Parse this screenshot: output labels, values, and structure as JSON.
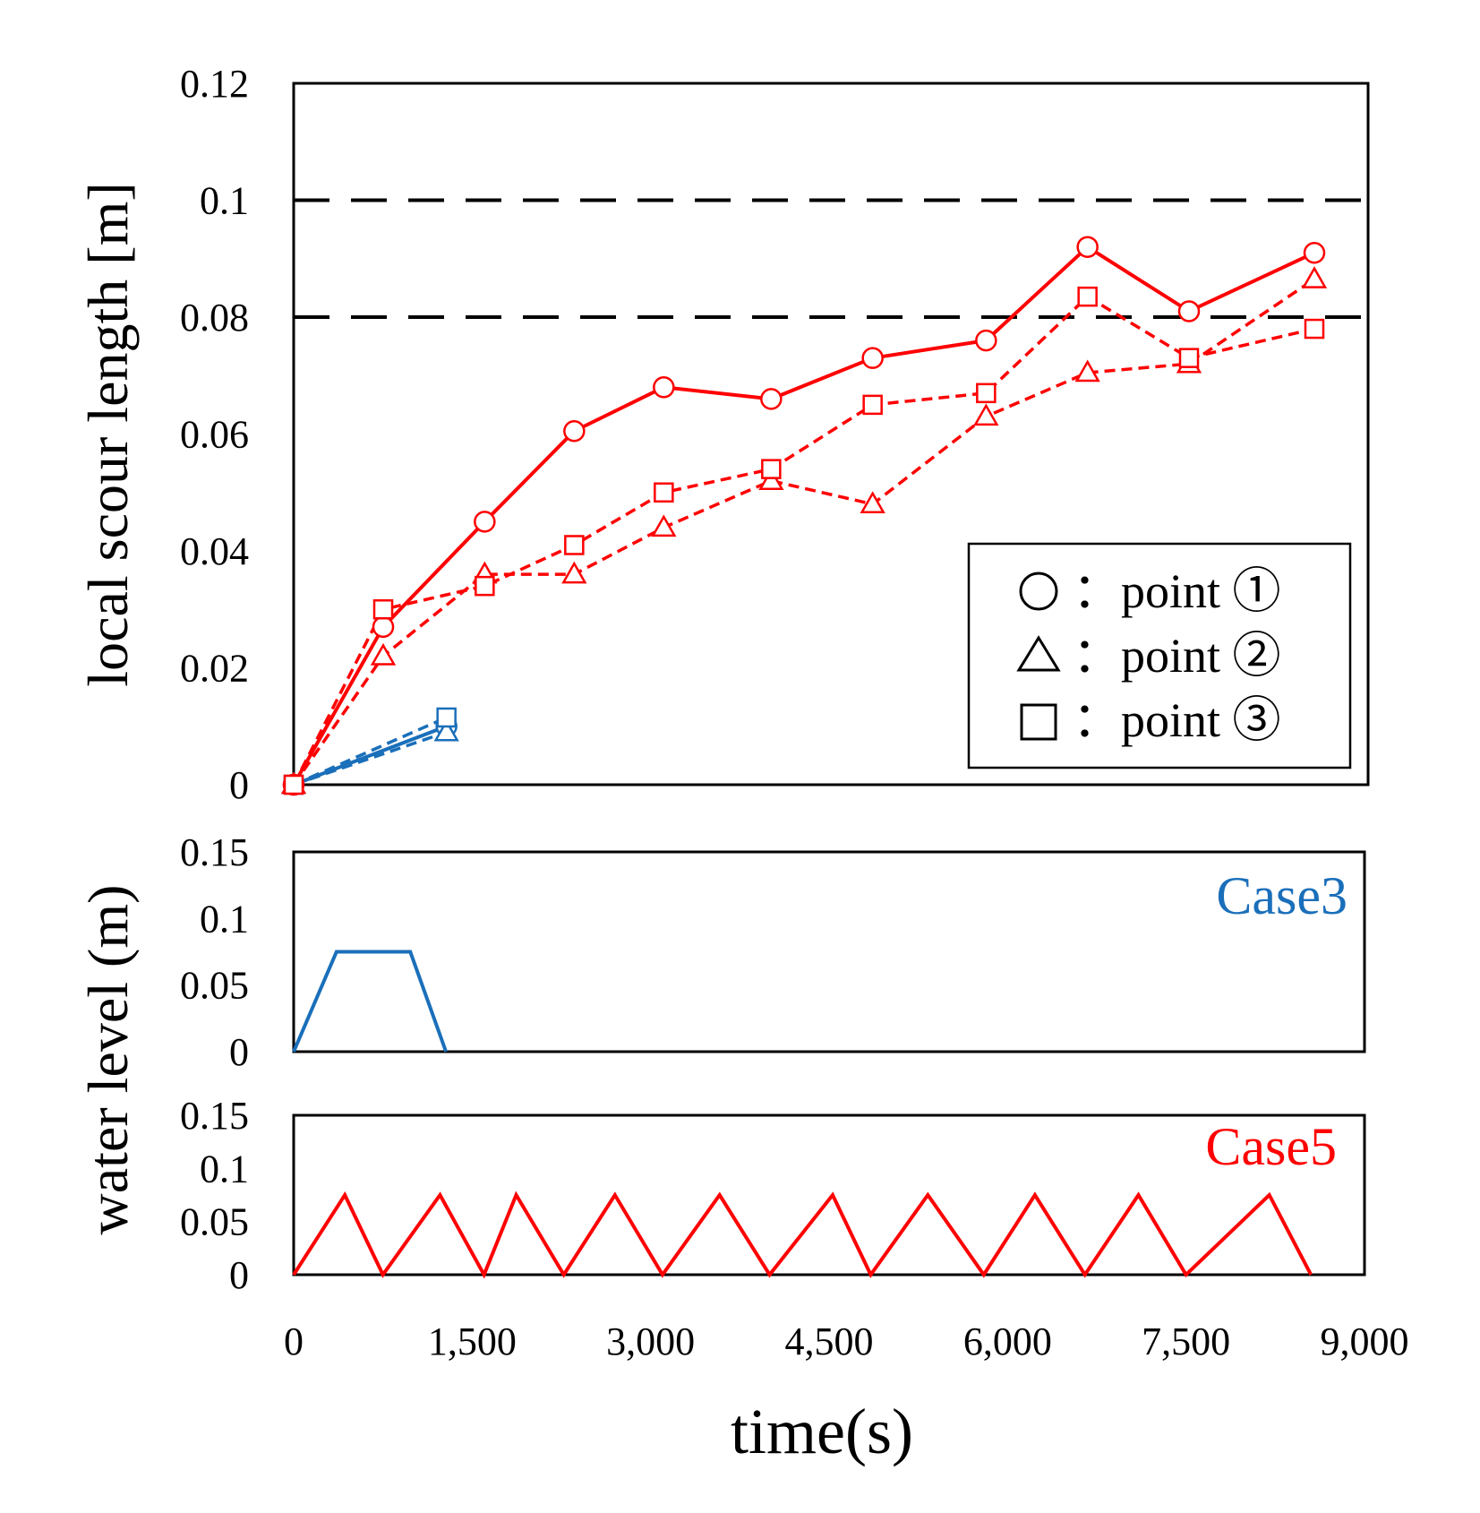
{
  "colors": {
    "case3": "#1a6fba",
    "case5": "#ff0000",
    "frame": "#000000",
    "ref": "#000000"
  },
  "chart_data": [
    {
      "type": "line",
      "title": "",
      "ylabel": "local scour length [m]",
      "xlim": [
        0,
        9000
      ],
      "ylim": [
        0,
        0.12
      ],
      "yticks": [
        0,
        0.02,
        0.04,
        0.06,
        0.08,
        0.1,
        0.12
      ],
      "ytick_labels": [
        "0",
        "0.02",
        "0.04",
        "0.06",
        "0.08",
        "0.1",
        "0.12"
      ],
      "reference_lines": [
        0.1,
        0.08
      ],
      "legend": {
        "position": "bottom-right",
        "entries": [
          {
            "marker": "circle",
            "label": "：point ①"
          },
          {
            "marker": "triangle",
            "label": "：point ②"
          },
          {
            "marker": "square",
            "label": "：point ③"
          }
        ]
      },
      "series": [
        {
          "name": "Case5 point ①",
          "case": "case5",
          "marker": "circle",
          "dash": false,
          "x": [
            0,
            750,
            1600,
            2350,
            3100,
            4000,
            4850,
            5800,
            6650,
            7500,
            8550
          ],
          "y": [
            0,
            0.027,
            0.045,
            0.0605,
            0.068,
            0.066,
            0.073,
            0.076,
            0.092,
            0.081,
            0.091
          ]
        },
        {
          "name": "Case5 point ②",
          "case": "case5",
          "marker": "triangle",
          "dash": true,
          "x": [
            0,
            750,
            1600,
            2350,
            3100,
            4000,
            4850,
            5800,
            6650,
            7500,
            8550
          ],
          "y": [
            0,
            0.022,
            0.036,
            0.036,
            0.044,
            0.052,
            0.048,
            0.063,
            0.0705,
            0.072,
            0.0865
          ]
        },
        {
          "name": "Case5 point ③",
          "case": "case5",
          "marker": "square",
          "dash": true,
          "x": [
            0,
            750,
            1600,
            2350,
            3100,
            4000,
            4850,
            5800,
            6650,
            7500,
            8550
          ],
          "y": [
            0,
            0.03,
            0.034,
            0.041,
            0.05,
            0.054,
            0.065,
            0.067,
            0.0835,
            0.073,
            0.078
          ]
        },
        {
          "name": "Case3 point ①",
          "case": "case3",
          "marker": "circle",
          "dash": false,
          "x": [
            0,
            1280
          ],
          "y": [
            0,
            0.01
          ]
        },
        {
          "name": "Case3 point ②",
          "case": "case3",
          "marker": "triangle",
          "dash": true,
          "x": [
            0,
            1280
          ],
          "y": [
            0,
            0.009
          ]
        },
        {
          "name": "Case3 point ③",
          "case": "case3",
          "marker": "square",
          "dash": true,
          "x": [
            0,
            1280
          ],
          "y": [
            0,
            0.0115
          ]
        }
      ]
    },
    {
      "type": "line",
      "label": "Case3",
      "case": "case3",
      "xlim": [
        0,
        9000
      ],
      "ylim": [
        0,
        0.15
      ],
      "yticks": [
        0,
        0.05,
        0.1,
        0.15
      ],
      "ytick_labels": [
        "0",
        "0.05",
        "0.1",
        "0.15"
      ],
      "series": [
        {
          "name": "Case3 water level",
          "x": [
            0,
            360,
            980,
            1280
          ],
          "y": [
            0,
            0.075,
            0.075,
            0
          ]
        }
      ]
    },
    {
      "type": "line",
      "label": "Case5",
      "case": "case5",
      "xlim": [
        0,
        9000
      ],
      "ylim": [
        0,
        0.15
      ],
      "yticks": [
        0,
        0.05,
        0.1,
        0.15
      ],
      "ytick_labels": [
        "0",
        "0.05",
        "0.1",
        "0.15"
      ],
      "series": [
        {
          "name": "Case5 water level",
          "x": [
            0,
            430,
            750,
            1230,
            1600,
            1870,
            2270,
            2700,
            3100,
            3580,
            4000,
            4530,
            4850,
            5330,
            5800,
            6230,
            6650,
            7100,
            7500,
            8200,
            8550
          ],
          "y": [
            0,
            0.075,
            0,
            0.075,
            0,
            0.075,
            0,
            0.075,
            0,
            0.075,
            0,
            0.075,
            0,
            0.075,
            0,
            0.075,
            0,
            0.075,
            0,
            0.075,
            0
          ]
        }
      ]
    }
  ],
  "shared_ylabel": "water level (m)",
  "xlabel": "time(s)",
  "xticks": [
    0,
    1500,
    3000,
    4500,
    6000,
    7500,
    9000
  ],
  "xtick_labels": [
    "0",
    "1,500",
    "3,000",
    "4,500",
    "6,000",
    "7,500",
    "9,000"
  ]
}
